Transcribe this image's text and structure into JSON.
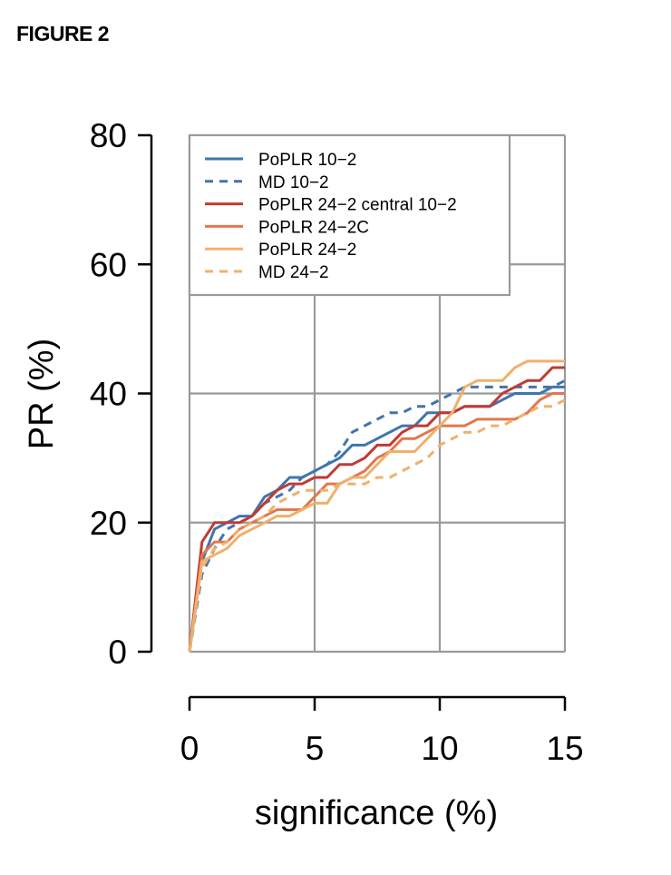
{
  "figure_label": "FIGURE 2",
  "chart_data": {
    "type": "line",
    "title": "",
    "xlabel": "significance (%)",
    "ylabel": "PR (%)",
    "xlim": [
      0,
      15
    ],
    "ylim": [
      0,
      80
    ],
    "xticks": [
      0,
      5,
      10,
      15
    ],
    "yticks": [
      0,
      20,
      40,
      60,
      80
    ],
    "grid": true,
    "legend_position": "top-left",
    "series": [
      {
        "name": "PoPLR 10−2",
        "color": "#3e75ae",
        "dash": "solid",
        "x": [
          0,
          0.5,
          1.0,
          1.5,
          2.0,
          2.5,
          3.0,
          3.5,
          4.0,
          4.5,
          5.0,
          5.5,
          6.0,
          6.5,
          7.0,
          7.5,
          8.0,
          8.5,
          9.0,
          9.5,
          10.0,
          10.5,
          11.0,
          11.5,
          12.0,
          12.5,
          13.0,
          13.5,
          14.0,
          14.5,
          15.0
        ],
        "y": [
          0,
          14,
          19,
          20,
          21,
          21,
          24,
          25,
          27,
          27,
          28,
          29,
          30,
          32,
          32,
          33,
          34,
          35,
          35,
          37,
          37,
          37,
          38,
          38,
          38,
          39,
          40,
          40,
          40,
          41,
          41
        ]
      },
      {
        "name": "MD 10−2",
        "color": "#3e75ae",
        "dash": "dashed",
        "x": [
          0,
          0.5,
          1.0,
          1.5,
          2.0,
          2.5,
          3.0,
          3.5,
          4.0,
          4.5,
          5.0,
          5.5,
          6.0,
          6.5,
          7.0,
          7.5,
          8.0,
          8.5,
          9.0,
          9.5,
          10.0,
          10.5,
          11.0,
          11.5,
          12.0,
          12.5,
          13.0,
          13.5,
          14.0,
          14.5,
          15.0
        ],
        "y": [
          0,
          12,
          16,
          19,
          20,
          21,
          23,
          24,
          25,
          27,
          28,
          29,
          31,
          34,
          35,
          36,
          37,
          37,
          38,
          38,
          39,
          40,
          41,
          41,
          41,
          41,
          41,
          41,
          41,
          41,
          42
        ]
      },
      {
        "name": "PoPLR 24−2 central 10−2",
        "color": "#c23a32",
        "dash": "solid",
        "x": [
          0,
          0.5,
          1.0,
          1.5,
          2.0,
          2.5,
          3.0,
          3.5,
          4.0,
          4.5,
          5.0,
          5.5,
          6.0,
          6.5,
          7.0,
          7.5,
          8.0,
          8.5,
          9.0,
          9.5,
          10.0,
          10.5,
          11.0,
          11.5,
          12.0,
          12.5,
          13.0,
          13.5,
          14.0,
          14.5,
          15.0
        ],
        "y": [
          0,
          17,
          20,
          20,
          20,
          21,
          23,
          25,
          26,
          26,
          27,
          27,
          29,
          29,
          30,
          32,
          32,
          34,
          35,
          35,
          37,
          37,
          38,
          38,
          38,
          40,
          41,
          42,
          42,
          44,
          44
        ]
      },
      {
        "name": "PoPLR 24−2C",
        "color": "#e2774d",
        "dash": "solid",
        "x": [
          0,
          0.5,
          1.0,
          1.5,
          2.0,
          2.5,
          3.0,
          3.5,
          4.0,
          4.5,
          5.0,
          5.5,
          6.0,
          6.5,
          7.0,
          7.5,
          8.0,
          8.5,
          9.0,
          9.5,
          10.0,
          10.5,
          11.0,
          11.5,
          12.0,
          12.5,
          13.0,
          13.5,
          14.0,
          14.5,
          15.0
        ],
        "y": [
          0,
          15,
          17,
          17,
          19,
          20,
          21,
          22,
          22,
          22,
          24,
          26,
          26,
          27,
          28,
          30,
          31,
          33,
          33,
          34,
          35,
          35,
          35,
          36,
          36,
          36,
          36,
          37,
          39,
          40,
          40
        ]
      },
      {
        "name": "PoPLR 24−2",
        "color": "#f0b06b",
        "dash": "solid",
        "x": [
          0,
          0.5,
          1.0,
          1.5,
          2.0,
          2.5,
          3.0,
          3.5,
          4.0,
          4.5,
          5.0,
          5.5,
          6.0,
          6.5,
          7.0,
          7.5,
          8.0,
          8.5,
          9.0,
          9.5,
          10.0,
          10.5,
          11.0,
          11.5,
          12.0,
          12.5,
          13.0,
          13.5,
          14.0,
          14.5,
          15.0
        ],
        "y": [
          0,
          14,
          15,
          16,
          18,
          19,
          20,
          21,
          21,
          22,
          23,
          23,
          26,
          27,
          27,
          29,
          31,
          31,
          31,
          33,
          35,
          37,
          41,
          42,
          42,
          42,
          44,
          45,
          45,
          45,
          45
        ]
      },
      {
        "name": "MD 24−2",
        "color": "#f0b06b",
        "dash": "dashed",
        "x": [
          0,
          0.5,
          1.0,
          1.5,
          2.0,
          2.5,
          3.0,
          3.5,
          4.0,
          4.5,
          5.0,
          5.5,
          6.0,
          6.5,
          7.0,
          7.5,
          8.0,
          8.5,
          9.0,
          9.5,
          10.0,
          10.5,
          11.0,
          11.5,
          12.0,
          12.5,
          13.0,
          13.5,
          14.0,
          14.5,
          15.0
        ],
        "y": [
          0,
          13,
          16,
          17,
          19,
          20,
          21,
          23,
          24,
          25,
          25,
          25,
          26,
          26,
          26,
          27,
          27,
          28,
          29,
          30,
          32,
          33,
          34,
          34,
          35,
          35,
          36,
          37,
          38,
          38,
          39
        ]
      }
    ]
  }
}
